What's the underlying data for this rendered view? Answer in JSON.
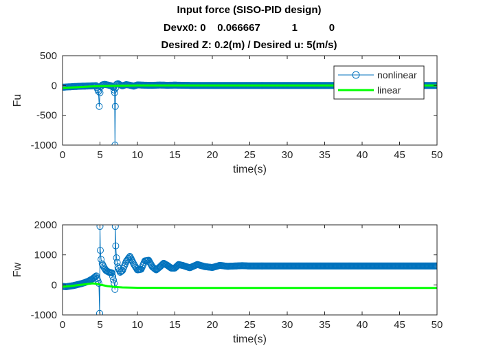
{
  "figure": {
    "title_lines": [
      "Input force (SISO-PID design)",
      "Devx0: 0    0.066667           1           0",
      "Desired Z: 0.2(m) / Desired u: 5(m/s)"
    ]
  },
  "colors": {
    "nonlinear": "#0072BD",
    "linear": "#00FF00",
    "axis": "#262626",
    "background": "#ffffff"
  },
  "chart_data": [
    {
      "type": "line",
      "id": "fu",
      "xlabel": "time(s)",
      "ylabel": "Fu",
      "xlim": [
        0,
        50
      ],
      "ylim": [
        -1000,
        500
      ],
      "xticks": [
        0,
        5,
        10,
        15,
        20,
        25,
        30,
        35,
        40,
        45,
        50
      ],
      "yticks": [
        -1000,
        -500,
        0,
        500
      ],
      "grid": false,
      "legend": {
        "position": "top-right",
        "entries": [
          "nonlinear",
          "linear"
        ]
      },
      "series": [
        {
          "name": "nonlinear",
          "style": "line-with-circle-markers",
          "x": [
            0,
            0.5,
            1,
            1.5,
            2,
            2.5,
            3,
            3.5,
            4,
            4.5,
            4.8,
            4.9,
            5.0,
            5.1,
            5.3,
            5.6,
            6.0,
            6.5,
            6.8,
            6.95,
            7.0,
            7.05,
            7.1,
            7.2,
            7.4,
            7.7,
            8,
            8.5,
            9,
            9.5,
            10,
            11,
            12,
            13,
            14,
            15,
            17,
            20,
            25,
            30,
            35,
            40,
            45,
            50
          ],
          "y": [
            -30,
            -25,
            -22,
            -18,
            -15,
            -12,
            -10,
            -8,
            -5,
            -3,
            -100,
            -350,
            -120,
            -20,
            10,
            20,
            10,
            -5,
            -30,
            -120,
            -1000,
            -350,
            -40,
            20,
            30,
            10,
            -5,
            15,
            5,
            -10,
            10,
            5,
            3,
            8,
            4,
            6,
            2,
            1,
            0,
            0,
            0,
            0,
            0,
            0
          ]
        },
        {
          "name": "linear",
          "style": "line",
          "x": [
            0,
            2,
            4,
            5,
            7,
            10,
            15,
            20,
            30,
            40,
            50
          ],
          "y": [
            -40,
            -30,
            -15,
            -10,
            -5,
            0,
            0,
            0,
            0,
            0,
            0
          ]
        }
      ]
    },
    {
      "type": "line",
      "id": "fw",
      "xlabel": "time(s)",
      "ylabel": "Fw",
      "xlim": [
        0,
        50
      ],
      "ylim": [
        -1000,
        2000
      ],
      "xticks": [
        0,
        5,
        10,
        15,
        20,
        25,
        30,
        35,
        40,
        45,
        50
      ],
      "yticks": [
        -1000,
        0,
        1000,
        2000
      ],
      "grid": false,
      "legend": null,
      "series": [
        {
          "name": "nonlinear",
          "style": "line-with-circle-markers",
          "x": [
            0,
            0.5,
            1,
            1.5,
            2,
            2.5,
            3,
            3.5,
            4,
            4.5,
            4.85,
            4.95,
            5.0,
            5.05,
            5.15,
            5.3,
            5.5,
            5.8,
            6.2,
            6.6,
            6.9,
            7.0,
            7.05,
            7.1,
            7.2,
            7.4,
            7.7,
            8.0,
            8.5,
            9.0,
            9.5,
            10.0,
            10.5,
            11.0,
            11.5,
            12.0,
            12.5,
            13.0,
            13.5,
            14.0,
            14.5,
            15.0,
            15.5,
            16.0,
            17.0,
            18.0,
            19.0,
            20.0,
            21.0,
            22.0,
            23.0,
            24.0,
            25.0,
            30.0,
            35.0,
            40.0,
            45.0,
            50.0
          ],
          "y": [
            -50,
            -60,
            -40,
            -20,
            10,
            40,
            80,
            130,
            200,
            300,
            50,
            -950,
            1950,
            1150,
            850,
            700,
            600,
            480,
            420,
            400,
            50,
            -150,
            1950,
            1300,
            900,
            600,
            420,
            480,
            780,
            950,
            700,
            500,
            520,
            800,
            820,
            600,
            500,
            600,
            720,
            650,
            560,
            560,
            680,
            650,
            570,
            680,
            610,
            580,
            650,
            620,
            630,
            640,
            630,
            630,
            630,
            630,
            630,
            630
          ]
        },
        {
          "name": "linear",
          "style": "line",
          "x": [
            0,
            1,
            2,
            3,
            4,
            4.5,
            5,
            6,
            7,
            8,
            10,
            15,
            20,
            30,
            40,
            50
          ],
          "y": [
            -60,
            -40,
            -10,
            20,
            50,
            40,
            10,
            -40,
            -70,
            -85,
            -95,
            -100,
            -100,
            -100,
            -100,
            -100
          ]
        }
      ]
    }
  ]
}
